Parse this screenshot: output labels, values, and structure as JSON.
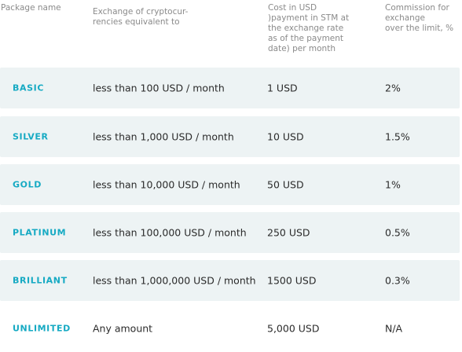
{
  "headers": {
    "package": "Package name",
    "exchange": "Exchange of cryptocur-\nrencies equivalent to",
    "cost": "Cost in USD\n)payment in STM at\nthe exchange rate\nas of the payment\ndate) per month",
    "commission": "Commission for\nexchange\nover the limit, %"
  },
  "rows": [
    {
      "package": "BASIC",
      "exchange": "less than 100 USD / month",
      "cost": "1 USD",
      "commission": "2%"
    },
    {
      "package": "SILVER",
      "exchange": "less than 1,000 USD / month",
      "cost": "10 USD",
      "commission": "1.5%"
    },
    {
      "package": "GOLD",
      "exchange": "less than 10,000 USD / month",
      "cost": "50 USD",
      "commission": "1%"
    },
    {
      "package": "PLATINUM",
      "exchange": "less than 100,000 USD / month",
      "cost": "250 USD",
      "commission": "0.5%"
    },
    {
      "package": "BRILLIANT",
      "exchange": "less than  1,000,000 USD / month",
      "cost": "1500 USD",
      "commission": "0.3%"
    },
    {
      "package": "UNLIMITED",
      "exchange": "Any amount",
      "cost": "5,000 USD",
      "commission": "N/A"
    }
  ],
  "colors": {
    "package_text": "#16aac3",
    "row_background": "#edf3f4",
    "header_text": "#8a8a8a",
    "body_text": "#2b2b2b"
  }
}
